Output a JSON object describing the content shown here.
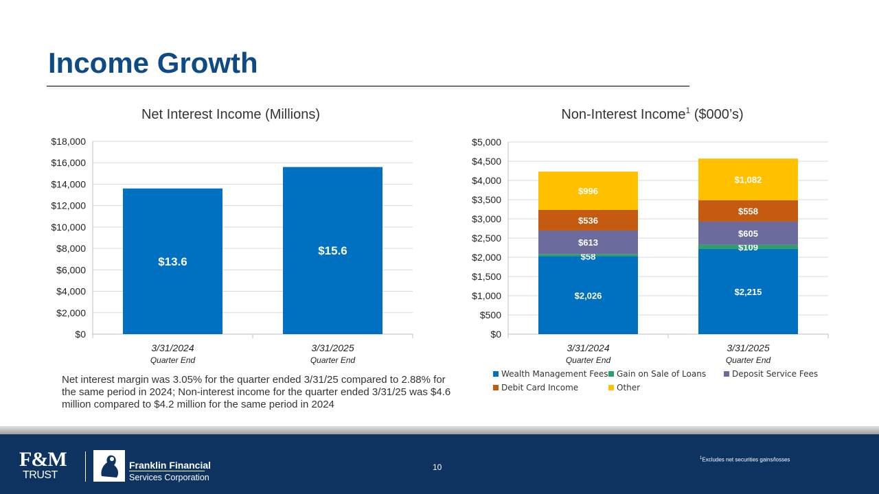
{
  "title": "Income Growth",
  "note": "Net interest margin was 3.05% for the quarter ended 3/31/25 compared to 2.88% for the same period in 2024; Non-interest income for the quarter ended 3/31/25 was $4.6 million compared to $4.2 million for the same period in 2024",
  "footer": {
    "fm": "F&M",
    "trust": "TRUST",
    "ffsc_line1": "Franklin Financial",
    "ffsc_line2": "Services Corporation",
    "page_number": "10",
    "footnote_sup": "1",
    "footnote": "Excludes net securities gains/losses"
  },
  "colors": {
    "blue": "#0070c0",
    "green": "#2e9e6b",
    "purple": "#6b6b9e",
    "orange": "#c55a11",
    "yellow": "#ffc000",
    "title": "#0d4a86"
  },
  "chart_data": [
    {
      "type": "bar",
      "title": "Net Interest Income (Millions)",
      "categories": [
        "3/31/2024",
        "3/31/2025"
      ],
      "sublabels": [
        "Quarter End",
        "Quarter End"
      ],
      "values": [
        13600,
        15600
      ],
      "data_labels": [
        "$13.6",
        "$15.6"
      ],
      "ylim": [
        0,
        18000
      ],
      "yticks": [
        0,
        2000,
        4000,
        6000,
        8000,
        10000,
        12000,
        14000,
        16000,
        18000
      ],
      "ytick_labels": [
        "$0",
        "$2,000",
        "$4,000",
        "$6,000",
        "$8,000",
        "$10,000",
        "$12,000",
        "$14,000",
        "$16,000",
        "$18,000"
      ],
      "grid": true
    },
    {
      "type": "bar",
      "stacked": true,
      "title": "Non-Interest Income",
      "title_sup": "1",
      "title_suffix": " ($000’s)",
      "categories": [
        "3/31/2024",
        "3/31/2025"
      ],
      "sublabels": [
        "Quarter End",
        "Quarter End"
      ],
      "series": [
        {
          "name": "Wealth Management Fees",
          "color": "#0070c0",
          "values": [
            2026,
            2215
          ],
          "labels": [
            "$2,026",
            "$2,215"
          ]
        },
        {
          "name": "Gain on Sale of Loans",
          "color": "#2e9e6b",
          "values": [
            58,
            109
          ],
          "labels": [
            "$58",
            "$109"
          ]
        },
        {
          "name": "Deposit Service Fees",
          "color": "#6b6b9e",
          "values": [
            613,
            605
          ],
          "labels": [
            "$613",
            "$605"
          ]
        },
        {
          "name": "Debit Card Income",
          "color": "#c55a11",
          "values": [
            536,
            558
          ],
          "labels": [
            "$536",
            "$558"
          ]
        },
        {
          "name": "Other",
          "color": "#ffc000",
          "values": [
            996,
            1082
          ],
          "labels": [
            "$996",
            "$1,082"
          ]
        }
      ],
      "ylim": [
        0,
        5000
      ],
      "yticks": [
        0,
        500,
        1000,
        1500,
        2000,
        2500,
        3000,
        3500,
        4000,
        4500,
        5000
      ],
      "ytick_labels": [
        "$0",
        "$500",
        "$1,000",
        "$1,500",
        "$2,000",
        "$2,500",
        "$3,000",
        "$3,500",
        "$4,000",
        "$4,500",
        "$5,000"
      ],
      "legend_position": "bottom",
      "grid": true
    }
  ]
}
